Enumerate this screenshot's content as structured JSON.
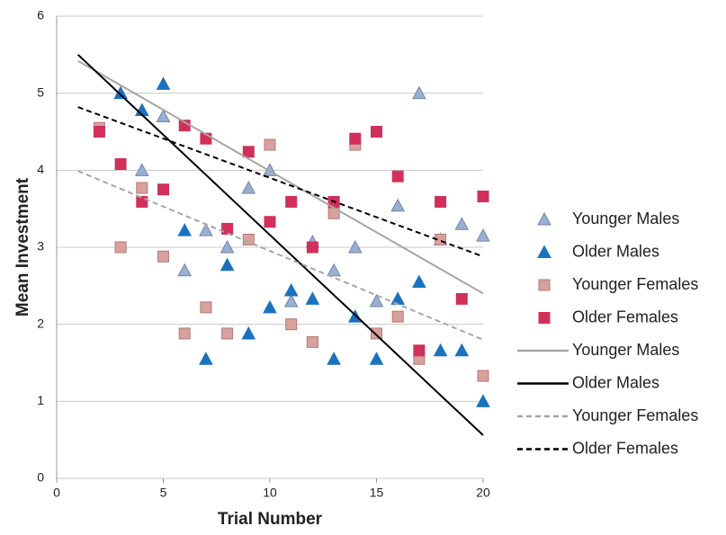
{
  "chart_data": {
    "type": "scatter",
    "xlabel": "Trial Number",
    "ylabel": "Mean Investment",
    "xlim": [
      0,
      20
    ],
    "ylim": [
      0,
      6
    ],
    "xticks": [
      0,
      5,
      10,
      15,
      20
    ],
    "yticks": [
      0,
      1,
      2,
      3,
      4,
      5,
      6
    ],
    "grid": true,
    "legend": "right",
    "series": [
      {
        "name": "Younger Males",
        "marker": "triangle",
        "color": "#9ab0d2",
        "edge": "#6f86a8",
        "x": [
          4,
          5,
          6,
          7,
          8,
          9,
          10,
          11,
          12,
          13,
          14,
          15,
          16,
          17,
          18,
          19,
          20
        ],
        "values": [
          4.0,
          4.7,
          2.7,
          3.22,
          3.0,
          3.77,
          4.0,
          2.3,
          3.07,
          2.7,
          3.0,
          2.3,
          3.54,
          5.0,
          3.1,
          3.3,
          3.15
        ]
      },
      {
        "name": "Older Males",
        "marker": "triangle",
        "color": "#1a72bf",
        "edge": "#1a72bf",
        "x": [
          3,
          4,
          5,
          6,
          7,
          8,
          9,
          10,
          11,
          12,
          13,
          14,
          15,
          16,
          17,
          18,
          19,
          20
        ],
        "values": [
          5.0,
          4.78,
          5.12,
          3.22,
          1.55,
          2.77,
          1.88,
          2.22,
          2.44,
          2.33,
          1.55,
          2.1,
          1.55,
          2.33,
          2.55,
          1.66,
          1.66,
          1.0
        ]
      },
      {
        "name": "Younger Females",
        "marker": "square",
        "color": "#d9a19d",
        "edge": "#b07a76",
        "x": [
          2,
          3,
          4,
          5,
          6,
          7,
          8,
          9,
          10,
          11,
          12,
          13,
          14,
          15,
          16,
          17,
          18,
          20
        ],
        "values": [
          4.55,
          3.0,
          3.77,
          2.88,
          1.88,
          2.22,
          1.88,
          3.1,
          4.33,
          2.0,
          1.77,
          3.44,
          4.33,
          1.88,
          2.1,
          1.55,
          3.1,
          1.33
        ]
      },
      {
        "name": "Older Females",
        "marker": "square",
        "color": "#d0305a",
        "edge": "#d0305a",
        "x": [
          2,
          3,
          4,
          5,
          6,
          7,
          8,
          9,
          10,
          11,
          12,
          13,
          14,
          15,
          16,
          17,
          18,
          19,
          20
        ],
        "values": [
          4.5,
          4.08,
          3.59,
          3.75,
          4.58,
          4.41,
          3.24,
          4.24,
          3.33,
          3.59,
          3.0,
          3.59,
          4.41,
          4.5,
          3.92,
          1.66,
          3.59,
          2.33,
          3.66
        ]
      }
    ],
    "trendlines": [
      {
        "name": "Younger Males",
        "color": "#a6a6a6",
        "dashed": false,
        "x": [
          1,
          20
        ],
        "values": [
          5.42,
          2.4
        ]
      },
      {
        "name": "Older Males",
        "color": "#000000",
        "dashed": false,
        "x": [
          1,
          20
        ],
        "values": [
          5.5,
          0.56
        ]
      },
      {
        "name": "Younger Females",
        "color": "#a6a6a6",
        "dashed": true,
        "x": [
          1,
          20
        ],
        "values": [
          3.99,
          1.8
        ]
      },
      {
        "name": "Older Females",
        "color": "#000000",
        "dashed": true,
        "x": [
          1,
          20
        ],
        "values": [
          4.82,
          2.88
        ]
      }
    ]
  }
}
